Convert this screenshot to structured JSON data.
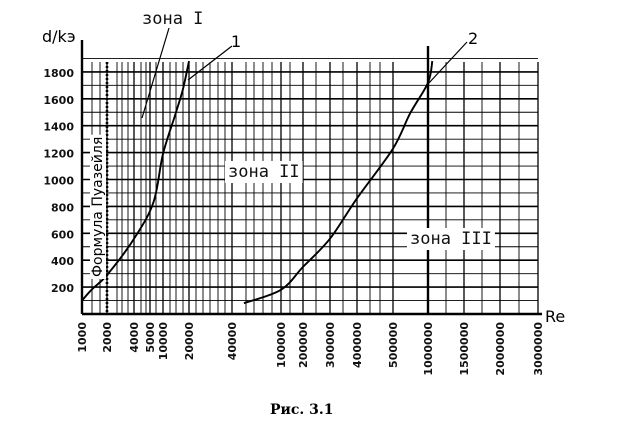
{
  "chart_data": {
    "type": "line",
    "title": "",
    "xlabel": "Re",
    "ylabel": "d/kэ",
    "x_ticks": [
      "1000",
      "2000",
      "4000",
      "5000",
      "10000",
      "20000",
      "40000",
      "100000",
      "200000",
      "300000",
      "400000",
      "500000",
      "1000000",
      "1500000",
      "2000000",
      "3000000"
    ],
    "y_ticks": [
      "200",
      "400",
      "600",
      "800",
      "1000",
      "1200",
      "1400",
      "1600",
      "1800"
    ],
    "ylim": [
      0,
      1900
    ],
    "grid": true,
    "series": [
      {
        "name": "1",
        "points": [
          [
            1000,
            100
          ],
          [
            1300,
            180
          ],
          [
            2000,
            290
          ],
          [
            4000,
            560
          ],
          [
            6000,
            830
          ],
          [
            10000,
            1190
          ],
          [
            14000,
            1490
          ],
          [
            17000,
            1670
          ],
          [
            20000,
            1880
          ]
        ]
      },
      {
        "name": "2",
        "points": [
          [
            50000,
            80
          ],
          [
            100000,
            180
          ],
          [
            200000,
            350
          ],
          [
            300000,
            560
          ],
          [
            400000,
            860
          ],
          [
            500000,
            1230
          ],
          [
            700000,
            1490
          ],
          [
            1000000,
            1720
          ],
          [
            1050000,
            1880
          ]
        ]
      }
    ],
    "annotations": [
      "зона I",
      "зона II",
      "зона III",
      "Формула Пуазейля"
    ]
  },
  "figure": {
    "caption": "Рис. 3.1"
  }
}
